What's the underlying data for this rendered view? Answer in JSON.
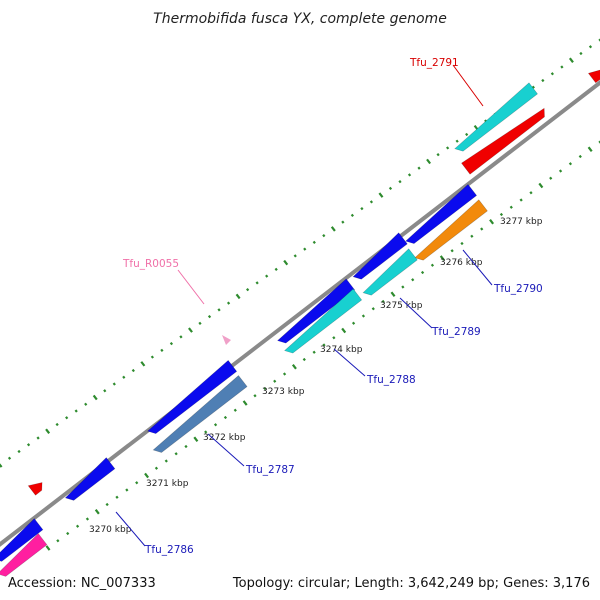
{
  "title": "Thermobifida fusca YX, complete genome",
  "footer": {
    "accession": "Accession: NC_007333",
    "summary": "Topology: circular; Length: 3,642,249 bp; Genes: 3,176"
  },
  "colors": {
    "backbone": "#8a8a8a",
    "tick": "#2e8b2e",
    "blue": "#0a0aee",
    "cyan": "#18d0d0",
    "red": "#f00000",
    "orange": "#f28a0c",
    "steelblue": "#4f7fb4",
    "pink": "#f0a0c8",
    "magenta": "#ff1fa0",
    "label_blue": "#1a1ab8",
    "label_red": "#d80000",
    "label_pink": "#f070a8"
  },
  "kbp_labels": [
    "3270 kbp",
    "3271 kbp",
    "3272 kbp",
    "3273 kbp",
    "3274 kbp",
    "3275 kbp",
    "3276 kbp",
    "3277 kbp"
  ],
  "gene_labels": [
    {
      "text": "Tfu_2786",
      "color": "label_blue"
    },
    {
      "text": "Tfu_2787",
      "color": "label_blue"
    },
    {
      "text": "Tfu_2788",
      "color": "label_blue"
    },
    {
      "text": "Tfu_2789",
      "color": "label_blue"
    },
    {
      "text": "Tfu_2790",
      "color": "label_blue"
    },
    {
      "text": "Tfu_2791",
      "color": "label_red"
    },
    {
      "text": "Tfu_R0055",
      "color": "label_pink"
    }
  ]
}
